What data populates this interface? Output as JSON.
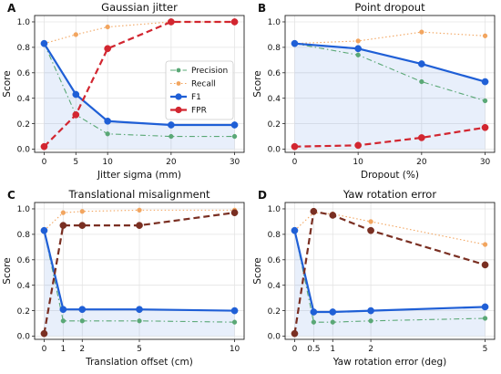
{
  "chart_data": [
    {
      "type": "line",
      "panel_label": "A",
      "title": "Gaussian jitter",
      "xlabel": "Jitter sigma (mm)",
      "ylabel": "Score",
      "x": [
        0,
        5,
        10,
        20,
        30
      ],
      "x_ticks": [
        "0",
        "5",
        "10",
        "20",
        "30"
      ],
      "ylim": [
        0,
        1.05
      ],
      "y_ticks": [
        "0.0",
        "0.2",
        "0.4",
        "0.6",
        "0.8",
        "1.0"
      ],
      "grid": true,
      "legend": "center-right",
      "series": [
        {
          "name": "Precision",
          "values": [
            0.83,
            0.27,
            0.12,
            0.1,
            0.1
          ],
          "color": "#5aa876",
          "style": "dashdot"
        },
        {
          "name": "Recall",
          "values": [
            0.83,
            0.9,
            0.96,
            1.0,
            1.0
          ],
          "color": "#f2a55f",
          "style": "dotted"
        },
        {
          "name": "F1",
          "values": [
            0.83,
            0.43,
            0.22,
            0.19,
            0.19
          ],
          "color": "#1f5fd6",
          "style": "solid"
        },
        {
          "name": "FPR",
          "values": [
            0.02,
            0.27,
            0.79,
            1.0,
            1.0
          ],
          "color": "#d22630",
          "style": "dashed"
        }
      ]
    },
    {
      "type": "line",
      "panel_label": "B",
      "title": "Point dropout",
      "xlabel": "Dropout (%)",
      "ylabel": "Score",
      "x": [
        0,
        10,
        20,
        30
      ],
      "x_ticks": [
        "0",
        "10",
        "20",
        "30"
      ],
      "ylim": [
        0,
        1.05
      ],
      "y_ticks": [
        "0.0",
        "0.2",
        "0.4",
        "0.6",
        "0.8",
        "1.0"
      ],
      "grid": true,
      "series": [
        {
          "name": "Precision",
          "values": [
            0.83,
            0.74,
            0.53,
            0.38
          ],
          "color": "#5aa876",
          "style": "dashdot"
        },
        {
          "name": "Recall",
          "values": [
            0.83,
            0.85,
            0.92,
            0.89
          ],
          "color": "#f2a55f",
          "style": "dotted"
        },
        {
          "name": "F1",
          "values": [
            0.83,
            0.79,
            0.67,
            0.53
          ],
          "color": "#1f5fd6",
          "style": "solid"
        },
        {
          "name": "FPR",
          "values": [
            0.02,
            0.03,
            0.09,
            0.17
          ],
          "color": "#d22630",
          "style": "dashed"
        }
      ]
    },
    {
      "type": "line",
      "panel_label": "C",
      "title": "Translational misalignment",
      "xlabel": "Translation offset (cm)",
      "ylabel": "Score",
      "x": [
        0,
        1,
        2,
        5,
        10
      ],
      "x_ticks": [
        "0",
        "1",
        "2",
        "5",
        "10"
      ],
      "ylim": [
        0,
        1.05
      ],
      "y_ticks": [
        "0.0",
        "0.2",
        "0.4",
        "0.6",
        "0.8",
        "1.0"
      ],
      "grid": true,
      "series": [
        {
          "name": "Precision",
          "values": [
            0.83,
            0.12,
            0.12,
            0.12,
            0.11
          ],
          "color": "#5aa876",
          "style": "dashdot"
        },
        {
          "name": "Recall",
          "values": [
            0.83,
            0.97,
            0.98,
            0.99,
            0.99
          ],
          "color": "#f2a55f",
          "style": "dotted"
        },
        {
          "name": "F1",
          "values": [
            0.83,
            0.21,
            0.21,
            0.21,
            0.2
          ],
          "color": "#1f5fd6",
          "style": "solid"
        },
        {
          "name": "FPR",
          "values": [
            0.02,
            0.87,
            0.87,
            0.87,
            0.97
          ],
          "color": "#7a2f22",
          "style": "dashed"
        }
      ]
    },
    {
      "type": "line",
      "panel_label": "D",
      "title": "Yaw rotation error",
      "xlabel": "Yaw rotation error (deg)",
      "ylabel": "Score",
      "x": [
        0,
        0.5,
        1,
        2,
        5
      ],
      "x_ticks": [
        "0",
        "0.5",
        "1",
        "2",
        "5"
      ],
      "ylim": [
        0,
        1.05
      ],
      "y_ticks": [
        "0.0",
        "0.2",
        "0.4",
        "0.6",
        "0.8",
        "1.0"
      ],
      "grid": true,
      "series": [
        {
          "name": "Precision",
          "values": [
            0.83,
            0.11,
            0.11,
            0.12,
            0.14
          ],
          "color": "#5aa876",
          "style": "dashdot"
        },
        {
          "name": "Recall",
          "values": [
            0.83,
            0.97,
            0.96,
            0.9,
            0.72
          ],
          "color": "#f2a55f",
          "style": "dotted"
        },
        {
          "name": "F1",
          "values": [
            0.83,
            0.19,
            0.19,
            0.2,
            0.23
          ],
          "color": "#1f5fd6",
          "style": "solid"
        },
        {
          "name": "FPR",
          "values": [
            0.02,
            0.98,
            0.95,
            0.83,
            0.56
          ],
          "color": "#7a2f22",
          "style": "dashed"
        }
      ]
    }
  ]
}
